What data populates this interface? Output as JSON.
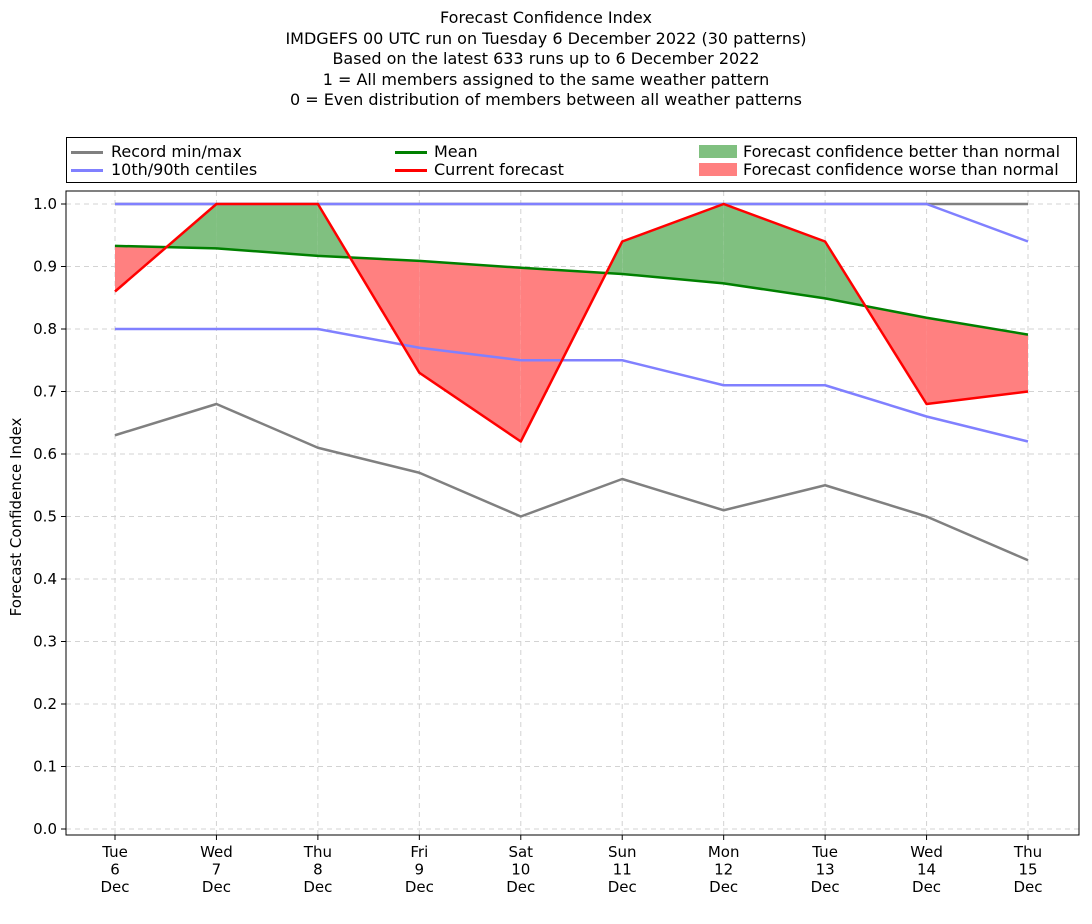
{
  "title_lines": [
    "Forecast Confidence Index",
    "IMDGEFS 00 UTC run on Tuesday 6 December 2022 (30 patterns)",
    "Based on the latest 633 runs up to 6 December 2022",
    "1 = All members assigned to the same weather pattern",
    "0 = Even distribution of members between all weather patterns"
  ],
  "legend": {
    "record": "Record min/max",
    "centiles": "10th/90th centiles",
    "mean": "Mean",
    "current": "Current forecast",
    "better": "Forecast confidence better than normal",
    "worse": "Forecast confidence worse than normal"
  },
  "colors": {
    "record": "#808080",
    "centiles": "#8080ff",
    "mean": "#008000",
    "current": "#ff0000",
    "better": "#80c080",
    "worse": "#ff8080",
    "grid": "#d3d3d3"
  },
  "chart_data": {
    "type": "line",
    "title": "Forecast Confidence Index",
    "ylabel": "Forecast Confidence Index",
    "xlabel": "",
    "ylim": [
      0.0,
      1.0
    ],
    "yticks": [
      "0.0",
      "0.1",
      "0.2",
      "0.3",
      "0.4",
      "0.5",
      "0.6",
      "0.7",
      "0.8",
      "0.9",
      "1.0"
    ],
    "grid": true,
    "legend_position": "top",
    "categories": [
      [
        "Tue",
        "6",
        "Dec"
      ],
      [
        "Wed",
        "7",
        "Dec"
      ],
      [
        "Thu",
        "8",
        "Dec"
      ],
      [
        "Fri",
        "9",
        "Dec"
      ],
      [
        "Sat",
        "10",
        "Dec"
      ],
      [
        "Sun",
        "11",
        "Dec"
      ],
      [
        "Mon",
        "12",
        "Dec"
      ],
      [
        "Tue",
        "13",
        "Dec"
      ],
      [
        "Wed",
        "14",
        "Dec"
      ],
      [
        "Thu",
        "15",
        "Dec"
      ]
    ],
    "series": [
      {
        "name": "Record min/max",
        "key": "record_min",
        "values": [
          0.63,
          0.68,
          0.61,
          0.57,
          0.5,
          0.56,
          0.51,
          0.55,
          0.5,
          0.43
        ]
      },
      {
        "name": "Record min/max",
        "key": "record_max",
        "values": [
          1.0,
          1.0,
          1.0,
          1.0,
          1.0,
          1.0,
          1.0,
          1.0,
          1.0,
          1.0
        ]
      },
      {
        "name": "10th/90th centiles",
        "key": "p10",
        "values": [
          0.8,
          0.8,
          0.8,
          0.77,
          0.75,
          0.75,
          0.71,
          0.71,
          0.66,
          0.62
        ]
      },
      {
        "name": "10th/90th centiles",
        "key": "p90",
        "values": [
          1.0,
          1.0,
          1.0,
          1.0,
          1.0,
          1.0,
          1.0,
          1.0,
          1.0,
          0.94
        ]
      },
      {
        "name": "Mean",
        "key": "mean",
        "values": [
          0.933,
          0.929,
          0.917,
          0.909,
          0.898,
          0.888,
          0.873,
          0.849,
          0.818,
          0.791
        ]
      },
      {
        "name": "Current forecast",
        "key": "current",
        "values": [
          0.86,
          1.0,
          1.0,
          0.73,
          0.62,
          0.94,
          1.0,
          0.94,
          0.68,
          0.7
        ]
      }
    ]
  }
}
